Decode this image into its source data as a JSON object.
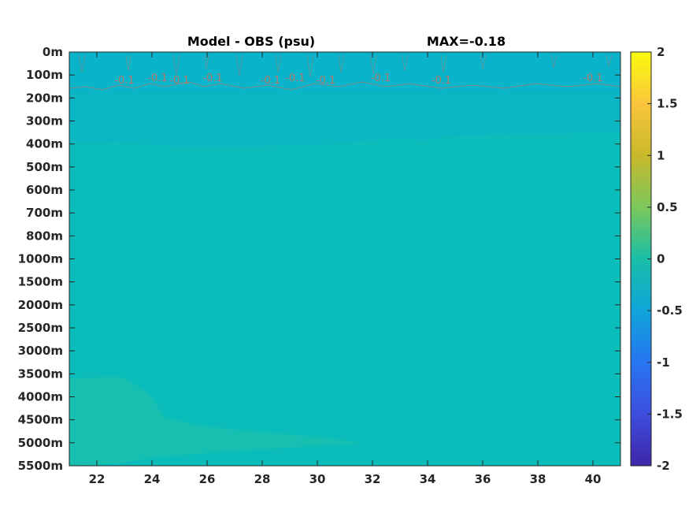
{
  "chart_data": {
    "type": "heatmap",
    "title": "Model - OBS (psu)",
    "subtitle": "MAX=-0.18",
    "x_ticks": [
      22,
      24,
      26,
      28,
      30,
      32,
      34,
      36,
      38,
      40
    ],
    "xlim": [
      21,
      41
    ],
    "y_ticks": [
      "0m",
      "100m",
      "200m",
      "300m",
      "400m",
      "500m",
      "600m",
      "700m",
      "800m",
      "1000m",
      "1500m",
      "2000m",
      "2500m",
      "3000m",
      "3500m",
      "4000m",
      "4500m",
      "5000m",
      "5500m"
    ],
    "colorbar": {
      "ticks": [
        2,
        1.5,
        1,
        0.5,
        0,
        -0.5,
        -1,
        -1.5,
        -2
      ],
      "range": [
        -2,
        2
      ],
      "colormap": "parula"
    },
    "contour_labels": [
      {
        "text": "-0.1",
        "x": 23.0
      },
      {
        "text": "-0.1",
        "x": 24.2
      },
      {
        "text": "-0.1",
        "x": 25.0
      },
      {
        "text": "-0.1",
        "x": 26.2
      },
      {
        "text": "-0.1",
        "x": 28.3
      },
      {
        "text": "-0.1",
        "x": 29.2
      },
      {
        "text": "-0.1",
        "x": 30.3
      },
      {
        "text": "-0.1",
        "x": 32.3
      },
      {
        "text": "-0.1",
        "x": 34.5
      },
      {
        "text": "-0.1",
        "x": 40.0
      }
    ],
    "field_colors": {
      "background": "#0ABDBB",
      "upper_band": "#09B6C7",
      "mid_band": "#0AB5C2",
      "deep_patch": "#18C0AE",
      "contour": "#b57a6a"
    }
  }
}
